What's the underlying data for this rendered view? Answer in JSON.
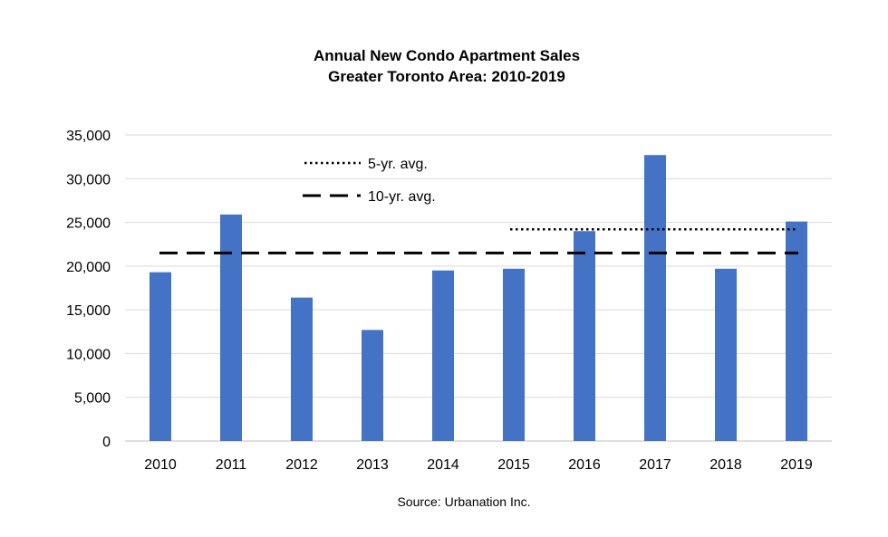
{
  "chart_data": {
    "type": "bar",
    "title": [
      "Annual New Condo Apartment Sales",
      "Greater Toronto Area: 2010-2019"
    ],
    "categories": [
      "2010",
      "2011",
      "2012",
      "2013",
      "2014",
      "2015",
      "2016",
      "2017",
      "2018",
      "2019"
    ],
    "values": [
      19300,
      25900,
      16400,
      12700,
      19500,
      19700,
      24000,
      32700,
      19700,
      25100
    ],
    "bar_color": "#4472C4",
    "ylim": [
      0,
      35000
    ],
    "yticks": [
      0,
      5000,
      10000,
      15000,
      20000,
      25000,
      30000,
      35000
    ],
    "ytick_labels": [
      "0",
      "5,000",
      "10,000",
      "15,000",
      "20,000",
      "25,000",
      "30,000",
      "35,000"
    ],
    "grid": true,
    "reference_lines": [
      {
        "name": "5-yr. avg.",
        "value": 24200,
        "style": "dotted",
        "from": "2015",
        "to": "2019"
      },
      {
        "name": "10-yr. avg.",
        "value": 21500,
        "style": "dashed",
        "from": "2010",
        "to": "2019"
      }
    ],
    "legend_position": "top-left",
    "source": "Source: Urbanation Inc."
  }
}
